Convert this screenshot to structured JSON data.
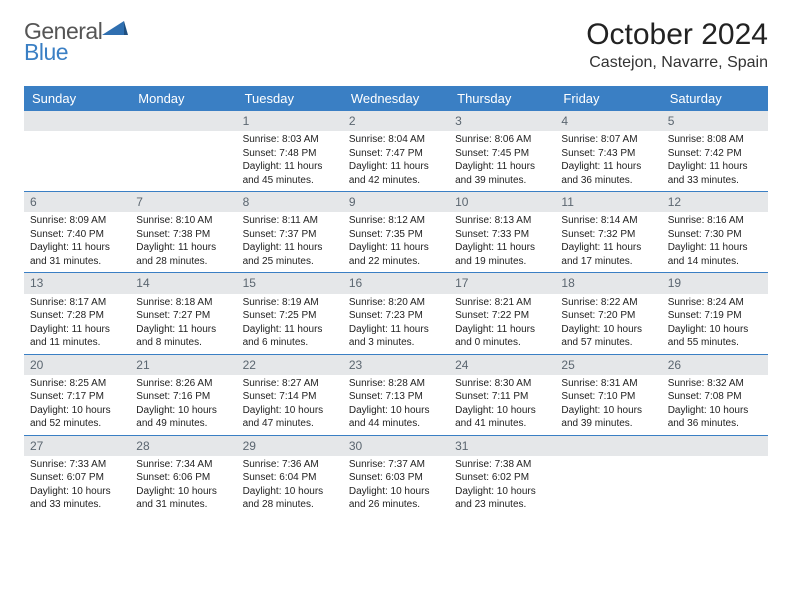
{
  "brand": {
    "part1": "General",
    "part2": "Blue"
  },
  "title": "October 2024",
  "location": "Castejon, Navarre, Spain",
  "colors": {
    "header_bg": "#3a7fc4",
    "header_fg": "#ffffff",
    "daynum_bg": "#e5e7e9",
    "daynum_fg": "#5b6670",
    "row_border": "#3a7fc4",
    "text": "#222222",
    "background": "#ffffff"
  },
  "typography": {
    "title_fontsize": 30,
    "location_fontsize": 16,
    "dayname_fontsize": 13,
    "daynum_fontsize": 12,
    "body_fontsize": 10
  },
  "day_names": [
    "Sunday",
    "Monday",
    "Tuesday",
    "Wednesday",
    "Thursday",
    "Friday",
    "Saturday"
  ],
  "weeks": [
    [
      {
        "n": "",
        "sr": "",
        "ss": "",
        "dl": ""
      },
      {
        "n": "",
        "sr": "",
        "ss": "",
        "dl": ""
      },
      {
        "n": "1",
        "sr": "Sunrise: 8:03 AM",
        "ss": "Sunset: 7:48 PM",
        "dl": "Daylight: 11 hours and 45 minutes."
      },
      {
        "n": "2",
        "sr": "Sunrise: 8:04 AM",
        "ss": "Sunset: 7:47 PM",
        "dl": "Daylight: 11 hours and 42 minutes."
      },
      {
        "n": "3",
        "sr": "Sunrise: 8:06 AM",
        "ss": "Sunset: 7:45 PM",
        "dl": "Daylight: 11 hours and 39 minutes."
      },
      {
        "n": "4",
        "sr": "Sunrise: 8:07 AM",
        "ss": "Sunset: 7:43 PM",
        "dl": "Daylight: 11 hours and 36 minutes."
      },
      {
        "n": "5",
        "sr": "Sunrise: 8:08 AM",
        "ss": "Sunset: 7:42 PM",
        "dl": "Daylight: 11 hours and 33 minutes."
      }
    ],
    [
      {
        "n": "6",
        "sr": "Sunrise: 8:09 AM",
        "ss": "Sunset: 7:40 PM",
        "dl": "Daylight: 11 hours and 31 minutes."
      },
      {
        "n": "7",
        "sr": "Sunrise: 8:10 AM",
        "ss": "Sunset: 7:38 PM",
        "dl": "Daylight: 11 hours and 28 minutes."
      },
      {
        "n": "8",
        "sr": "Sunrise: 8:11 AM",
        "ss": "Sunset: 7:37 PM",
        "dl": "Daylight: 11 hours and 25 minutes."
      },
      {
        "n": "9",
        "sr": "Sunrise: 8:12 AM",
        "ss": "Sunset: 7:35 PM",
        "dl": "Daylight: 11 hours and 22 minutes."
      },
      {
        "n": "10",
        "sr": "Sunrise: 8:13 AM",
        "ss": "Sunset: 7:33 PM",
        "dl": "Daylight: 11 hours and 19 minutes."
      },
      {
        "n": "11",
        "sr": "Sunrise: 8:14 AM",
        "ss": "Sunset: 7:32 PM",
        "dl": "Daylight: 11 hours and 17 minutes."
      },
      {
        "n": "12",
        "sr": "Sunrise: 8:16 AM",
        "ss": "Sunset: 7:30 PM",
        "dl": "Daylight: 11 hours and 14 minutes."
      }
    ],
    [
      {
        "n": "13",
        "sr": "Sunrise: 8:17 AM",
        "ss": "Sunset: 7:28 PM",
        "dl": "Daylight: 11 hours and 11 minutes."
      },
      {
        "n": "14",
        "sr": "Sunrise: 8:18 AM",
        "ss": "Sunset: 7:27 PM",
        "dl": "Daylight: 11 hours and 8 minutes."
      },
      {
        "n": "15",
        "sr": "Sunrise: 8:19 AM",
        "ss": "Sunset: 7:25 PM",
        "dl": "Daylight: 11 hours and 6 minutes."
      },
      {
        "n": "16",
        "sr": "Sunrise: 8:20 AM",
        "ss": "Sunset: 7:23 PM",
        "dl": "Daylight: 11 hours and 3 minutes."
      },
      {
        "n": "17",
        "sr": "Sunrise: 8:21 AM",
        "ss": "Sunset: 7:22 PM",
        "dl": "Daylight: 11 hours and 0 minutes."
      },
      {
        "n": "18",
        "sr": "Sunrise: 8:22 AM",
        "ss": "Sunset: 7:20 PM",
        "dl": "Daylight: 10 hours and 57 minutes."
      },
      {
        "n": "19",
        "sr": "Sunrise: 8:24 AM",
        "ss": "Sunset: 7:19 PM",
        "dl": "Daylight: 10 hours and 55 minutes."
      }
    ],
    [
      {
        "n": "20",
        "sr": "Sunrise: 8:25 AM",
        "ss": "Sunset: 7:17 PM",
        "dl": "Daylight: 10 hours and 52 minutes."
      },
      {
        "n": "21",
        "sr": "Sunrise: 8:26 AM",
        "ss": "Sunset: 7:16 PM",
        "dl": "Daylight: 10 hours and 49 minutes."
      },
      {
        "n": "22",
        "sr": "Sunrise: 8:27 AM",
        "ss": "Sunset: 7:14 PM",
        "dl": "Daylight: 10 hours and 47 minutes."
      },
      {
        "n": "23",
        "sr": "Sunrise: 8:28 AM",
        "ss": "Sunset: 7:13 PM",
        "dl": "Daylight: 10 hours and 44 minutes."
      },
      {
        "n": "24",
        "sr": "Sunrise: 8:30 AM",
        "ss": "Sunset: 7:11 PM",
        "dl": "Daylight: 10 hours and 41 minutes."
      },
      {
        "n": "25",
        "sr": "Sunrise: 8:31 AM",
        "ss": "Sunset: 7:10 PM",
        "dl": "Daylight: 10 hours and 39 minutes."
      },
      {
        "n": "26",
        "sr": "Sunrise: 8:32 AM",
        "ss": "Sunset: 7:08 PM",
        "dl": "Daylight: 10 hours and 36 minutes."
      }
    ],
    [
      {
        "n": "27",
        "sr": "Sunrise: 7:33 AM",
        "ss": "Sunset: 6:07 PM",
        "dl": "Daylight: 10 hours and 33 minutes."
      },
      {
        "n": "28",
        "sr": "Sunrise: 7:34 AM",
        "ss": "Sunset: 6:06 PM",
        "dl": "Daylight: 10 hours and 31 minutes."
      },
      {
        "n": "29",
        "sr": "Sunrise: 7:36 AM",
        "ss": "Sunset: 6:04 PM",
        "dl": "Daylight: 10 hours and 28 minutes."
      },
      {
        "n": "30",
        "sr": "Sunrise: 7:37 AM",
        "ss": "Sunset: 6:03 PM",
        "dl": "Daylight: 10 hours and 26 minutes."
      },
      {
        "n": "31",
        "sr": "Sunrise: 7:38 AM",
        "ss": "Sunset: 6:02 PM",
        "dl": "Daylight: 10 hours and 23 minutes."
      },
      {
        "n": "",
        "sr": "",
        "ss": "",
        "dl": ""
      },
      {
        "n": "",
        "sr": "",
        "ss": "",
        "dl": ""
      }
    ]
  ]
}
